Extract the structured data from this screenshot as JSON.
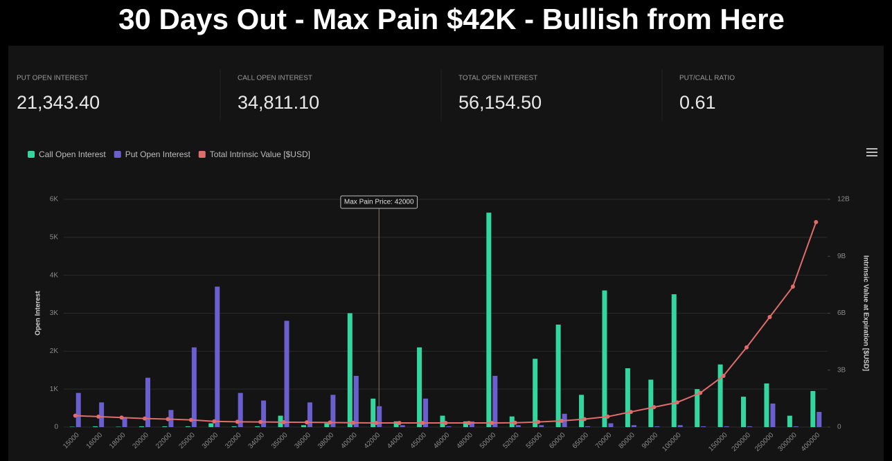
{
  "header": {
    "title": "30 Days Out - Max Pain $42K - Bullish from Here"
  },
  "stats": [
    {
      "label": "PUT OPEN INTEREST",
      "value": "21,343.40"
    },
    {
      "label": "CALL OPEN INTEREST",
      "value": "34,811.10"
    },
    {
      "label": "TOTAL OPEN INTEREST",
      "value": "56,154.50"
    },
    {
      "label": "PUT/CALL RATIO",
      "value": "0.61"
    }
  ],
  "chart_data": {
    "type": "bar",
    "categories": [
      "15000",
      "16000",
      "18000",
      "20000",
      "22000",
      "25000",
      "30000",
      "32000",
      "34000",
      "35000",
      "36000",
      "38000",
      "40000",
      "42000",
      "44000",
      "45000",
      "46000",
      "48000",
      "50000",
      "52000",
      "55000",
      "60000",
      "65000",
      "70000",
      "80000",
      "90000",
      "100000",
      null,
      "150000",
      "200000",
      "250000",
      "300000",
      "400000"
    ],
    "series": [
      {
        "name": "Call Open Interest",
        "color": "#33d69f",
        "values": [
          10,
          20,
          10,
          20,
          20,
          20,
          100,
          20,
          20,
          300,
          50,
          100,
          3000,
          750,
          150,
          2100,
          300,
          150,
          5650,
          280,
          1800,
          2700,
          850,
          3600,
          1550,
          1250,
          3500,
          1000,
          1650,
          800,
          1150,
          300,
          950
        ]
      },
      {
        "name": "Put Open Interest",
        "color": "#6b5fd0",
        "values": [
          900,
          650,
          250,
          1300,
          450,
          2100,
          3700,
          900,
          700,
          2800,
          650,
          850,
          1350,
          550,
          50,
          750,
          20,
          150,
          1350,
          50,
          50,
          350,
          20,
          100,
          50,
          20,
          50,
          20,
          20,
          20,
          620,
          20,
          400
        ]
      },
      {
        "name": "Total Intrinsic Value [$USD]",
        "color": "#e06c6c",
        "type": "line",
        "axis": "y2",
        "values": [
          600000000,
          550000000,
          500000000,
          450000000,
          420000000,
          380000000,
          300000000,
          280000000,
          270000000,
          260000000,
          250000000,
          240000000,
          230000000,
          220000000,
          220000000,
          220000000,
          220000000,
          220000000,
          220000000,
          230000000,
          270000000,
          330000000,
          420000000,
          550000000,
          800000000,
          1050000000,
          1300000000,
          1800000000,
          2700000000,
          4200000000,
          5800000000,
          7400000000,
          10800000000
        ]
      }
    ],
    "ylabel": "Open Interest",
    "y2label": "Intrinsic Value at Expiration [$USD]",
    "ylim": [
      0,
      6000
    ],
    "yticks": [
      0,
      {
        "value": 1000,
        "label": "1K"
      },
      {
        "value": 2000,
        "label": "2K"
      },
      {
        "value": 3000,
        "label": "3K"
      },
      {
        "value": 4000,
        "label": "4K"
      },
      {
        "value": 5000,
        "label": "5K"
      },
      {
        "value": 6000,
        "label": "6K"
      }
    ],
    "y2lim": [
      0,
      12000000000
    ],
    "y2ticks": [
      0,
      {
        "value": 3000000000,
        "label": "3B"
      },
      {
        "value": 6000000000,
        "label": "6B"
      },
      {
        "value": 9000000000,
        "label": "9B"
      },
      {
        "value": 12000000000,
        "label": "12B"
      }
    ],
    "grid": true,
    "legend": "top-left",
    "annotation": {
      "text": "Max Pain Price: 42000",
      "category": "42000"
    }
  }
}
